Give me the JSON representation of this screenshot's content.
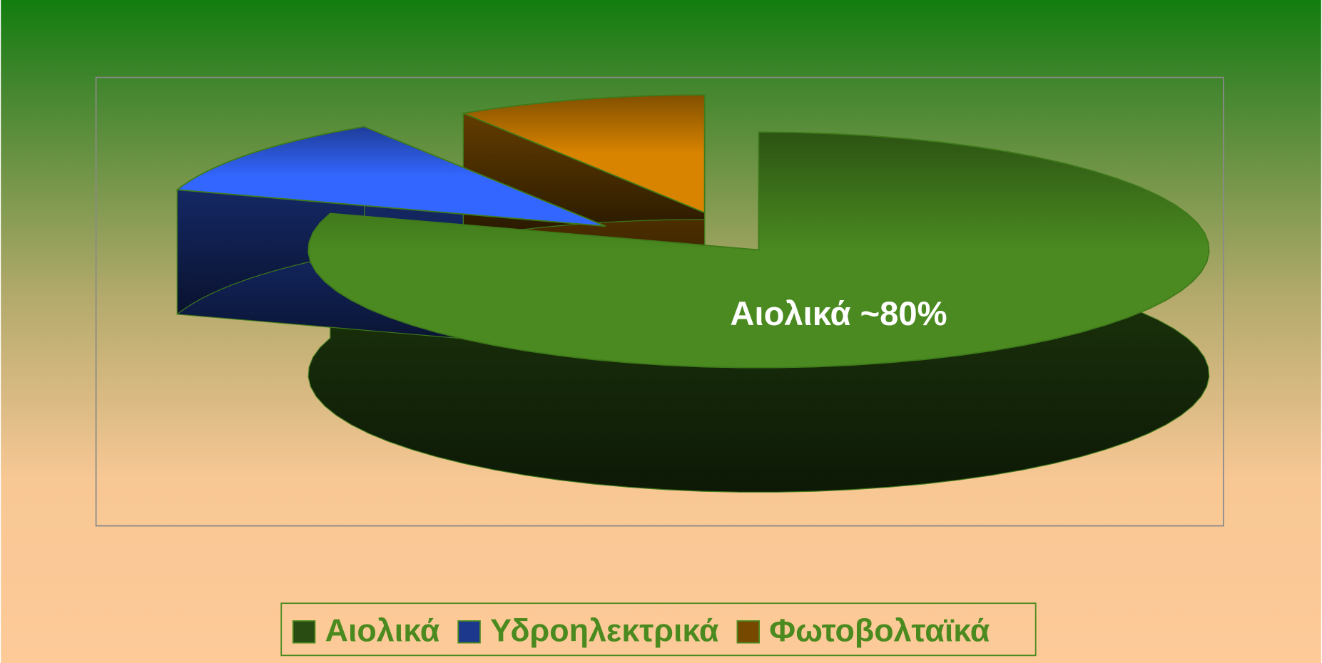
{
  "chart_data": {
    "type": "pie3d",
    "categories": [
      "Αιολικά",
      "Υδροηλεκτρικά",
      "Φωτοβολταϊκά"
    ],
    "values": [
      80,
      11,
      9
    ],
    "value_labels": [
      "Αιολικά ~80%",
      null,
      null
    ],
    "colors": [
      "#4a8a20",
      "#3366ff",
      "#d88400"
    ],
    "legend": "bottom"
  }
}
